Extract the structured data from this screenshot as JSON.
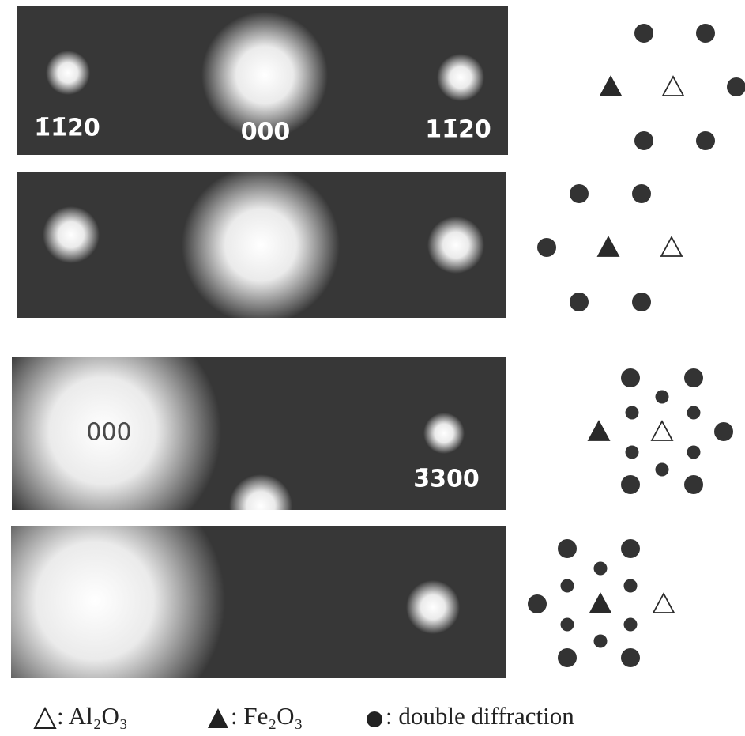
{
  "panels": [
    {
      "labels": [
        "1̄1̄20",
        "000",
        "11̄20"
      ]
    },
    {
      "labels": []
    },
    {
      "labels": [
        "000",
        "3̄300"
      ]
    },
    {
      "labels": []
    }
  ],
  "legend": [
    {
      "label": ": Al₂O₃"
    },
    {
      "label": ": Fe₂O₃"
    },
    {
      "label": ": double diffraction"
    }
  ]
}
